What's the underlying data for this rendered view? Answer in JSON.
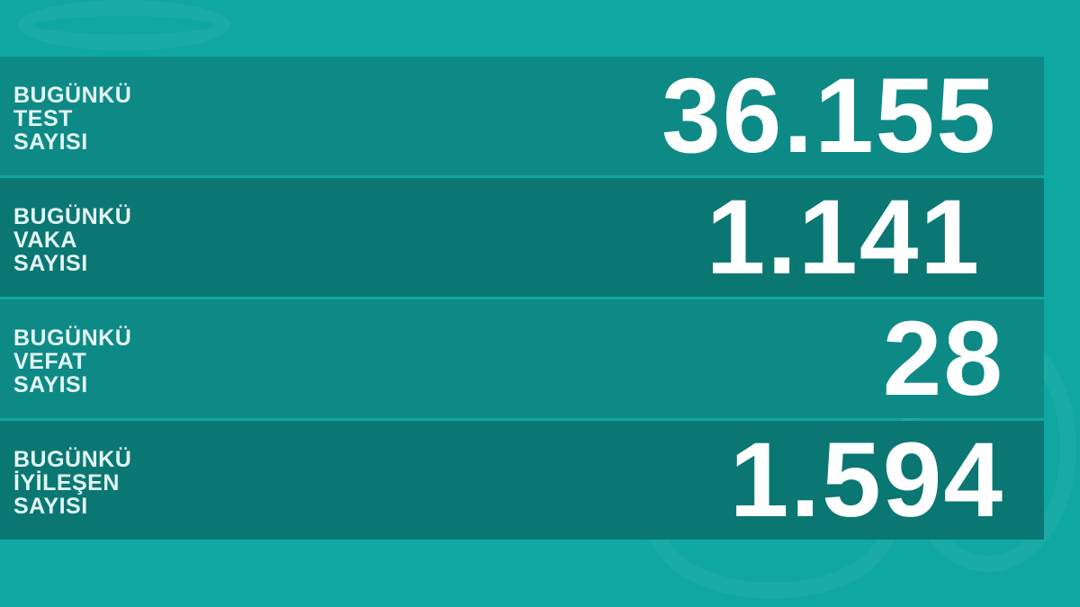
{
  "rows": [
    {
      "label_lines": [
        "BUGÜNKÜ",
        "TEST",
        "SAYISI"
      ],
      "value": "36.155"
    },
    {
      "label_lines": [
        "BUGÜNKÜ",
        "VAKA",
        "SAYISI"
      ],
      "value": "1.141"
    },
    {
      "label_lines": [
        "BUGÜNKÜ",
        "VEFAT",
        "SAYISI"
      ],
      "value": "28"
    },
    {
      "label_lines": [
        "BUGÜNKÜ",
        "İYİLEŞEN",
        "SAYISI"
      ],
      "value": "1.594"
    }
  ],
  "colors": {
    "background": "#0fa7a2",
    "row_light": "#0e8a86",
    "row_dark": "#0a7773",
    "text": "#ffffff"
  }
}
